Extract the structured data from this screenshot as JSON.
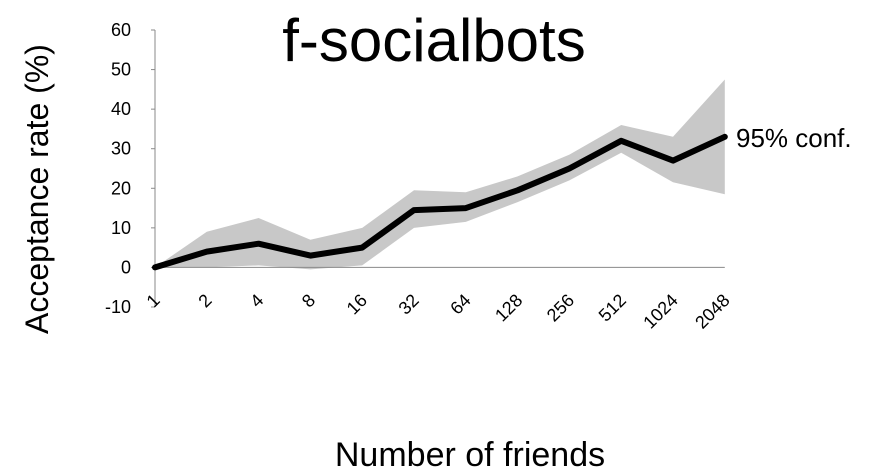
{
  "chart_data": {
    "type": "line",
    "title": "f-socialbots",
    "xlabel": "Number of friends",
    "ylabel": "Acceptance rate (%)",
    "categories": [
      "1",
      "2",
      "4",
      "8",
      "16",
      "32",
      "64",
      "128",
      "256",
      "512",
      "1024",
      "2048"
    ],
    "series": [
      {
        "values": [
          0,
          4,
          6,
          3,
          5,
          14.5,
          15,
          19.5,
          25,
          32,
          27,
          33
        ],
        "color": "#000000"
      }
    ],
    "confidence_band": {
      "label": "95% conf.",
      "lower": [
        0,
        0,
        0.5,
        -0.5,
        0.5,
        10,
        11.5,
        16.5,
        22,
        29,
        21.5,
        18.5
      ],
      "upper": [
        0,
        9,
        12.5,
        7,
        10,
        19.5,
        19,
        23,
        28.5,
        36,
        33,
        47.5
      ],
      "color": "#c8c8c8"
    },
    "ylim": [
      -10,
      60
    ],
    "yticks": [
      "-10",
      "0",
      "10",
      "20",
      "30",
      "40",
      "50",
      "60"
    ],
    "grid": false,
    "legend": "none"
  }
}
